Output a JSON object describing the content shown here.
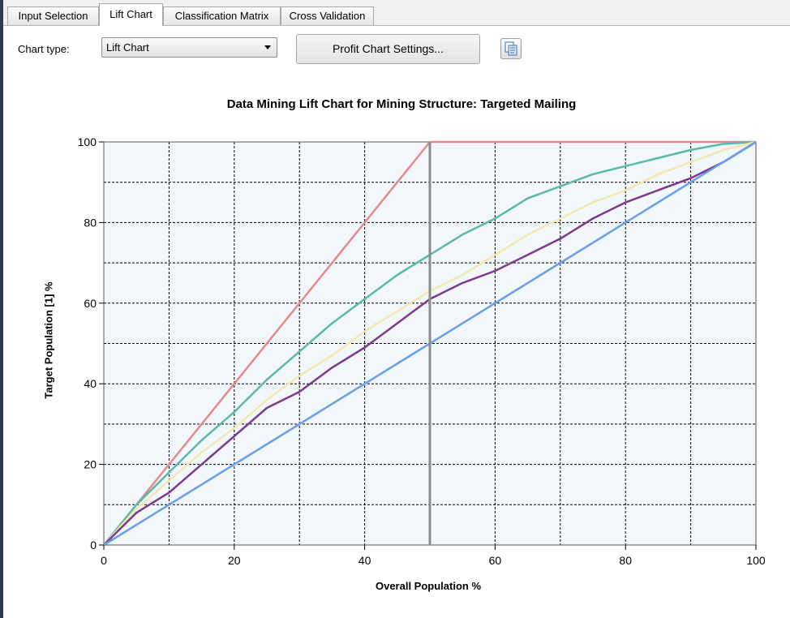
{
  "tabs": [
    {
      "label": "Input Selection",
      "active": false
    },
    {
      "label": "Lift Chart",
      "active": true
    },
    {
      "label": "Classification Matrix",
      "active": false
    },
    {
      "label": "Cross Validation",
      "active": false
    }
  ],
  "toolbar": {
    "chart_type_label": "Chart type:",
    "chart_type_value": "Lift Chart",
    "settings_button": "Profit Chart Settings...",
    "copy_icon": "copy-to-clipboard-icon"
  },
  "chart_data": {
    "type": "line",
    "title": "Data Mining Lift Chart for Mining Structure: Targeted Mailing",
    "xlabel": "Overall Population %",
    "ylabel": "Target Population [1] %",
    "xlim": [
      0,
      100
    ],
    "ylim": [
      0,
      100
    ],
    "x_ticks": [
      "0",
      "20",
      "40",
      "60",
      "80",
      "100"
    ],
    "y_ticks": [
      "0",
      "20",
      "40",
      "60",
      "80",
      "100"
    ],
    "grid": true,
    "cursor_x": 50,
    "series": [
      {
        "color": "#e58a8a",
        "x": [
          0,
          50,
          100
        ],
        "y": [
          0,
          100,
          100
        ]
      },
      {
        "color": "#5cb8a8",
        "x": [
          0,
          5,
          10,
          15,
          20,
          25,
          30,
          35,
          40,
          45,
          50,
          55,
          60,
          65,
          70,
          75,
          80,
          85,
          90,
          95,
          100
        ],
        "y": [
          0,
          10,
          18,
          26,
          33,
          41,
          48,
          55,
          61,
          67,
          72,
          77,
          81,
          86,
          89,
          92,
          94,
          96,
          98,
          99.5,
          100
        ]
      },
      {
        "color": "#f2e8b0",
        "x": [
          0,
          5,
          10,
          15,
          20,
          25,
          30,
          35,
          40,
          45,
          50,
          55,
          60,
          65,
          70,
          75,
          80,
          85,
          90,
          95,
          100
        ],
        "y": [
          0,
          9,
          16,
          23,
          29,
          36,
          42,
          47,
          53,
          58,
          63,
          67,
          72,
          77,
          81,
          85,
          88,
          92,
          95,
          98,
          100
        ]
      },
      {
        "color": "#7b3a8e",
        "x": [
          0,
          5,
          10,
          15,
          20,
          25,
          30,
          35,
          40,
          45,
          50,
          55,
          60,
          65,
          70,
          75,
          80,
          85,
          90,
          95,
          100
        ],
        "y": [
          0,
          8,
          13,
          20,
          27,
          34,
          38,
          44,
          49,
          55,
          61,
          65,
          68,
          72,
          76,
          81,
          85,
          88,
          91,
          95,
          100
        ]
      },
      {
        "color": "#6a9ee6",
        "x": [
          0,
          100
        ],
        "y": [
          0,
          100
        ]
      }
    ]
  }
}
